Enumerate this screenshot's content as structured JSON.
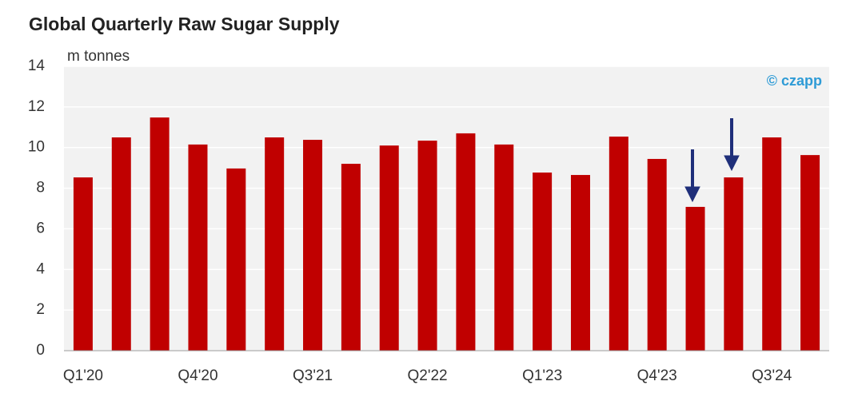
{
  "chart_data": {
    "type": "bar",
    "title": "Global Quarterly Raw Sugar Supply",
    "y_label": "m tonnes",
    "watermark": "© czapp",
    "categories": [
      "Q1'20",
      null,
      null,
      "Q4'20",
      null,
      null,
      "Q3'21",
      null,
      null,
      "Q2'22",
      null,
      null,
      "Q1'23",
      null,
      null,
      "Q4'23",
      null,
      null,
      "Q3'24",
      null
    ],
    "values": [
      8.53,
      10.5,
      11.48,
      10.15,
      8.97,
      10.5,
      10.38,
      9.2,
      10.1,
      10.34,
      10.7,
      10.15,
      8.77,
      8.65,
      10.54,
      9.44,
      7.08,
      8.53,
      10.5,
      9.63
    ],
    "color": "#c00000",
    "ylim": [
      0,
      14
    ],
    "yticks": [
      0,
      2,
      4,
      6,
      8,
      10,
      12,
      14
    ],
    "grid": true
  }
}
